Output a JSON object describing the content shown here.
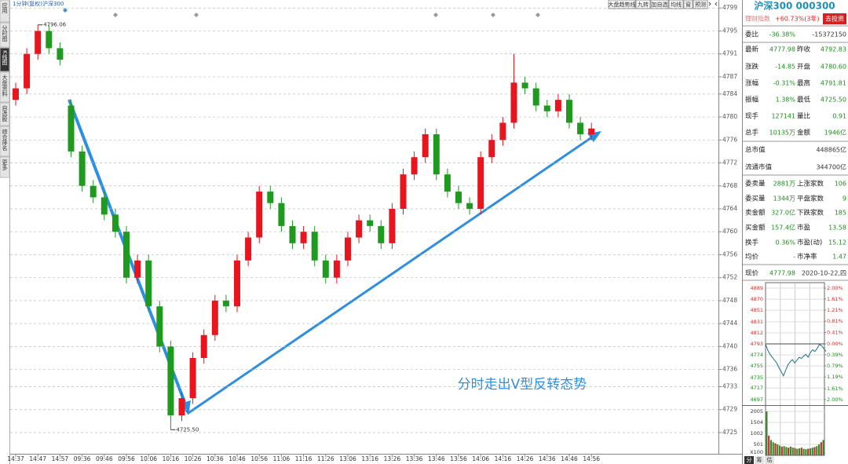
{
  "header": {
    "period": "1分钟(复权)",
    "name": "沪深300"
  },
  "toolbar": [
    "大盘趋势线",
    "九转",
    "加自选",
    "均线",
    "窗",
    "预测"
  ],
  "sidebar": [
    "应用",
    "分时图",
    "K线图",
    "大盘资料",
    "自选股",
    "综合排名",
    "更多"
  ],
  "chart_data": [
    {
      "type": "candlestick",
      "categories": [
        "14:37",
        null,
        "14:47",
        null,
        "14:57",
        null,
        "09:36",
        null,
        "09:46",
        null,
        "09:56",
        null,
        "10:06",
        null,
        "10:16",
        null,
        "10:26",
        null,
        "10:36",
        null,
        "10:46",
        null,
        "10:56",
        null,
        "11:06",
        null,
        "11:16",
        null,
        "11:26",
        null,
        "13:06",
        null,
        "13:16",
        null,
        "13:26",
        null,
        "13:36",
        null,
        "13:46",
        null,
        "13:56",
        null,
        "14:06",
        null,
        "14:16",
        null,
        "14:26",
        null,
        "14:36",
        null,
        "14:46",
        null,
        "14:56"
      ],
      "open": [
        4783,
        4785,
        4791,
        4795,
        4792,
        4782,
        4774,
        4768,
        4766,
        4763,
        4760,
        4752,
        4755,
        4747,
        4740,
        4728,
        4731,
        4738,
        4742,
        4748,
        4747,
        4755,
        4759,
        4767,
        4765,
        4761,
        4758,
        4760,
        4755,
        4752,
        4755,
        4759,
        4762,
        4761,
        4758,
        4764,
        4770,
        4773,
        4777,
        4770,
        4767,
        4765,
        4764,
        4773,
        4776,
        4779,
        4786,
        4785,
        4782,
        4781,
        4783,
        4779,
        4777
      ],
      "high": [
        4786,
        4792,
        4796.06,
        4796,
        4793,
        4783,
        4775,
        4769,
        4767,
        4764,
        4761,
        4756,
        4756,
        4748,
        4741,
        4732,
        4739,
        4743,
        4749,
        4749,
        4756,
        4760,
        4768,
        4768,
        4766,
        4762,
        4761,
        4761,
        4756,
        4756,
        4760,
        4763,
        4763,
        4762,
        4765,
        4771,
        4774,
        4778,
        4778,
        4771,
        4768,
        4766,
        4774,
        4777,
        4780,
        4791,
        4787,
        4786,
        4783,
        4784,
        4784,
        4780,
        4779
      ],
      "low": [
        4782,
        4784,
        4790,
        4791,
        4789,
        4773,
        4767,
        4765,
        4762,
        4759,
        4751,
        4751,
        4746,
        4739,
        4725.5,
        4727,
        4730,
        4737,
        4741,
        4746,
        4746,
        4754,
        4758,
        4764,
        4760,
        4757,
        4757,
        4754,
        4751,
        4751,
        4754,
        4758,
        4760,
        4757,
        4757,
        4763,
        4769,
        4772,
        4769,
        4766,
        4764,
        4763,
        4763,
        4772,
        4775,
        4778,
        4784,
        4781,
        4780,
        4780,
        4778,
        4776,
        4776
      ],
      "close": [
        4785,
        4791,
        4795,
        4792,
        4790,
        4774,
        4768,
        4766,
        4763,
        4760,
        4752,
        4755,
        4747,
        4740,
        4728,
        4731,
        4738,
        4742,
        4748,
        4747,
        4755,
        4759,
        4767,
        4765,
        4761,
        4758,
        4760,
        4755,
        4752,
        4755,
        4759,
        4762,
        4761,
        4758,
        4764,
        4770,
        4773,
        4777,
        4770,
        4767,
        4765,
        4764,
        4773,
        4776,
        4779,
        4786,
        4785,
        4782,
        4781,
        4783,
        4779,
        4777,
        4778
      ],
      "up_color": "#e8141e",
      "down_color": "#1e9b1e",
      "ylim": [
        4721.3,
        4800.4
      ],
      "yticks": [
        4799,
        4795,
        4791,
        4787,
        4784,
        4780,
        4776,
        4772,
        4768,
        4764,
        4760,
        4756,
        4752,
        4748,
        4744,
        4740,
        4736,
        4733,
        4729,
        4725
      ],
      "grid": true,
      "annotations": [
        "4796.06",
        "4725.50",
        "分时走出V型反转态势"
      ]
    },
    {
      "type": "line",
      "values": [
        4793,
        4782,
        4775,
        4770,
        4765,
        4760,
        4752,
        4745,
        4738,
        4748,
        4757,
        4762,
        4766,
        4760,
        4765,
        4770,
        4768,
        4772,
        4775,
        4770,
        4778,
        4783,
        4780,
        4785,
        4792,
        4790,
        4785,
        4780
      ],
      "color": "#1f6f8b",
      "ylim": [
        4693,
        4898.5
      ],
      "yticks": [
        4889,
        4870,
        4851,
        4831,
        4812,
        4793,
        4774,
        4755,
        4735,
        4717,
        4697
      ],
      "y2lim": [
        -2.085,
        2.197
      ],
      "y2ticks": [
        {
          "value": 2.0,
          "label": "2.00%"
        },
        {
          "value": 1.61,
          "label": "1.61%"
        },
        {
          "value": 1.21,
          "label": "1.21%"
        },
        {
          "value": 0.81,
          "label": "0.81%"
        },
        {
          "value": 0.41,
          "label": "0.41%"
        },
        {
          "value": 0.0,
          "label": "0.00%"
        },
        {
          "value": -0.39,
          "label": "0.39%"
        },
        {
          "value": -0.79,
          "label": "0.79%"
        },
        {
          "value": -1.19,
          "label": "1.19%"
        },
        {
          "value": -1.61,
          "label": "1.61%"
        },
        {
          "value": -2.0,
          "label": "2.00%"
        }
      ]
    },
    {
      "type": "bar",
      "values": [
        2005,
        900,
        700,
        600,
        550,
        500,
        450,
        400,
        420,
        380,
        350,
        400,
        360,
        330,
        300,
        320,
        350,
        300,
        280,
        300,
        320,
        350,
        380,
        420,
        500,
        600,
        700
      ],
      "color": "#3a8a2a",
      "ylim": [
        0,
        2256
      ],
      "yticks": [
        2005,
        1504,
        1002,
        501
      ],
      "ylabel": "X100"
    }
  ],
  "quote": {
    "title": "沪深300 000300",
    "finance_label": "理财指数",
    "finance_value": "+60.73%(3年)",
    "invest_button": "去投资",
    "rows": [
      [
        "委比",
        "-36.38%",
        "-15372150"
      ],
      [
        "最新",
        "4777.98",
        "昨收",
        "4792.83"
      ],
      [
        "涨跌",
        "-14.85",
        "开盘",
        "4780.60"
      ],
      [
        "涨幅",
        "-0.31%",
        "最高",
        "4791.81"
      ],
      [
        "振幅",
        "1.38%",
        "最低",
        "4725.50"
      ],
      [
        "现手",
        "127141",
        "量比",
        "0.91"
      ],
      [
        "总手",
        "10135万",
        "金额",
        "1946亿"
      ],
      [
        "总市值",
        "448865亿"
      ],
      [
        "流通市值",
        "344700亿"
      ],
      [
        "委卖量",
        "2881万",
        "上涨家数",
        "106"
      ],
      [
        "委买量",
        "1344万",
        "平盘家数",
        "9"
      ],
      [
        "卖金额",
        "327.0亿",
        "下跌家数",
        "185"
      ],
      [
        "买金额",
        "157.4亿",
        "市盈",
        "13.58"
      ],
      [
        "换手",
        "0.36%",
        "市盈(动)",
        "15.12"
      ],
      [
        "均价",
        "-",
        "市净率",
        "1.47"
      ],
      [
        "现价",
        "4777.98",
        "2020-10-22,四"
      ]
    ],
    "tabs": [
      "分",
      "筹",
      "估"
    ]
  }
}
